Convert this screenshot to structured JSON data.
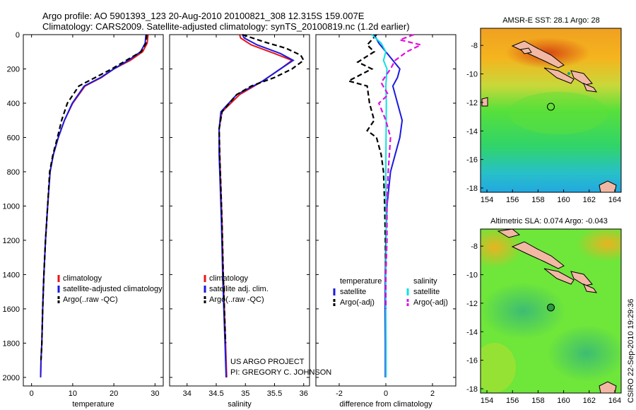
{
  "header": {
    "line1": "Argo profile: AO 5901393_123 20-Aug-2010 20100821_308 12.315S 159.007E",
    "line2": "Climatology: CARS2009. Satellite-adjusted climatology: synTS_20100819.nc (1.2d earlier)"
  },
  "credits": {
    "project": "US ARGO PROJECT",
    "pi": "PI: GREGORY C. JOHNSON",
    "stamp": "CSIRO 22-Sep-2010 19:29:36"
  },
  "colors": {
    "climatology": "#e8141b",
    "satellite": "#1a1ae0",
    "argo": "#000000",
    "salinity_satellite": "#10e0e0",
    "salinity_argo": "#e010e0"
  },
  "chart_data": [
    {
      "type": "line",
      "id": "temperature",
      "xlabel": "temperature",
      "ylabel": "",
      "xlim": [
        -2,
        32
      ],
      "ylim": [
        2050,
        0
      ],
      "xticks": [
        0,
        10,
        20,
        30
      ],
      "yticks": [
        0,
        200,
        400,
        600,
        800,
        1000,
        1200,
        1400,
        1600,
        1800,
        2000
      ],
      "legend": {
        "position": "bottom-right",
        "entries": [
          "climatology",
          "satellite-adjusted climatology",
          "Argo(..raw -QC)"
        ]
      },
      "series": [
        {
          "name": "climatology",
          "color": "#e8141b",
          "dash": "solid",
          "x": [
            28.3,
            28.1,
            27.0,
            24.0,
            20.0,
            17.0,
            13.0,
            10.0,
            8.0,
            6.5,
            5.3,
            4.5,
            3.9,
            3.4,
            3.0,
            2.7,
            2.5,
            2.3,
            2.2
          ],
          "y": [
            0,
            50,
            100,
            150,
            200,
            250,
            300,
            400,
            500,
            600,
            700,
            800,
            1000,
            1200,
            1400,
            1600,
            1800,
            1900,
            2000
          ]
        },
        {
          "name": "satellite-adjusted climatology",
          "color": "#1a1ae0",
          "dash": "solid",
          "x": [
            27.8,
            27.6,
            26.5,
            23.5,
            20.0,
            16.8,
            12.8,
            9.9,
            8.0,
            6.5,
            5.3,
            4.5,
            3.9,
            3.4,
            3.0,
            2.7,
            2.5,
            2.3,
            2.2
          ],
          "y": [
            0,
            50,
            100,
            150,
            200,
            250,
            300,
            400,
            500,
            600,
            700,
            800,
            1000,
            1200,
            1400,
            1600,
            1800,
            1900,
            2000
          ]
        },
        {
          "name": "Argo(..raw -QC)",
          "color": "#000000",
          "dash": "dashed",
          "x": [
            28.0,
            27.8,
            26.6,
            23.0,
            19.5,
            15.5,
            11.5,
            8.7,
            7.3,
            6.3,
            5.2,
            4.4,
            3.9,
            3.4,
            3.0,
            2.7,
            2.5,
            2.3
          ],
          "y": [
            0,
            50,
            100,
            150,
            200,
            250,
            300,
            400,
            500,
            600,
            700,
            800,
            1000,
            1200,
            1400,
            1600,
            1800,
            1900
          ]
        }
      ]
    },
    {
      "type": "line",
      "id": "salinity",
      "xlabel": "salinity",
      "xlim": [
        33.7,
        36.1
      ],
      "ylim": [
        2050,
        0
      ],
      "xticks": [
        34,
        34.5,
        35,
        35.5,
        36
      ],
      "yticks": [
        0,
        200,
        400,
        600,
        800,
        1000,
        1200,
        1400,
        1600,
        1800,
        2000
      ],
      "legend": {
        "position": "bottom-right",
        "entries": [
          "climatology",
          "satellite adj. clim.",
          "Argo(..raw -QC)"
        ]
      },
      "series": [
        {
          "name": "climatology",
          "color": "#e8141b",
          "dash": "solid",
          "x": [
            34.9,
            34.92,
            35.1,
            35.5,
            35.8,
            35.6,
            35.3,
            34.9,
            34.6,
            34.55,
            34.56,
            34.58,
            34.6,
            34.62,
            34.64,
            34.66,
            34.68
          ],
          "y": [
            0,
            20,
            60,
            110,
            150,
            200,
            270,
            350,
            450,
            550,
            700,
            900,
            1100,
            1400,
            1600,
            1800,
            2000
          ]
        },
        {
          "name": "satellite adj. clim.",
          "color": "#1a1ae0",
          "dash": "solid",
          "x": [
            34.95,
            34.98,
            35.2,
            35.6,
            35.82,
            35.6,
            35.3,
            34.85,
            34.58,
            34.55,
            34.55,
            34.57,
            34.59,
            34.61,
            34.63,
            34.65,
            34.67
          ],
          "y": [
            0,
            20,
            60,
            110,
            150,
            200,
            270,
            350,
            450,
            550,
            700,
            900,
            1100,
            1400,
            1600,
            1800,
            2000
          ]
        },
        {
          "name": "Argo(..raw -QC)",
          "color": "#000000",
          "dash": "dashed",
          "x": [
            34.95,
            35.3,
            35.7,
            35.95,
            36.0,
            35.8,
            35.5,
            35.1,
            34.85,
            34.6,
            34.55,
            34.56,
            34.58,
            34.6,
            34.62,
            34.64,
            34.66
          ],
          "y": [
            0,
            40,
            80,
            120,
            150,
            200,
            250,
            300,
            350,
            450,
            550,
            700,
            900,
            1100,
            1400,
            1600,
            1800
          ]
        }
      ]
    },
    {
      "type": "line",
      "id": "difference",
      "xlabel": "difference from climatology",
      "xlim": [
        -3,
        3
      ],
      "ylim": [
        2050,
        0
      ],
      "xticks": [
        -2,
        0,
        2
      ],
      "yticks": [
        0,
        200,
        400,
        600,
        800,
        1000,
        1200,
        1400,
        1600,
        1800,
        2000
      ],
      "legend": {
        "position": "bottom",
        "groups": [
          {
            "title": "temperature",
            "entries": [
              "satellite",
              "Argo(-adj)"
            ]
          },
          {
            "title": "salinity",
            "entries": [
              "satellite",
              "Argo(-adj)"
            ]
          }
        ]
      },
      "series": [
        {
          "name": "temperature satellite",
          "color": "#1a1ae0",
          "dash": "solid",
          "x": [
            -0.5,
            -0.3,
            0.0,
            0.3,
            0.6,
            0.5,
            0.3,
            0.5,
            0.7,
            0.6,
            0.4,
            0.2,
            0.05,
            0.0,
            -0.02,
            -0.03,
            -0.02,
            -0.02
          ],
          "y": [
            0,
            50,
            100,
            150,
            200,
            250,
            300,
            400,
            500,
            600,
            700,
            800,
            1000,
            1200,
            1400,
            1600,
            1800,
            2000
          ]
        },
        {
          "name": "temperature Argo(-adj)",
          "color": "#000000",
          "dash": "dashed",
          "x": [
            -0.4,
            -0.8,
            -0.5,
            -1.2,
            -0.6,
            -1.6,
            -0.8,
            -0.7,
            -0.5,
            -0.8,
            -0.4,
            -0.2,
            -0.1,
            -0.05,
            -0.02,
            -0.01,
            0.0
          ],
          "y": [
            0,
            60,
            100,
            160,
            200,
            270,
            300,
            400,
            500,
            560,
            600,
            700,
            800,
            1000,
            1200,
            1400,
            1600
          ]
        },
        {
          "name": "salinity satellite",
          "color": "#10e0e0",
          "dash": "solid",
          "x": [
            -0.6,
            -0.2,
            0.0,
            -0.1,
            0.05,
            0.0,
            0.02,
            0.01,
            0.0,
            0.01,
            0.02,
            0.0,
            0.0,
            0.01,
            0.01
          ],
          "y": [
            0,
            50,
            100,
            150,
            200,
            300,
            400,
            600,
            800,
            1000,
            1200,
            1400,
            1600,
            1800,
            2000
          ]
        },
        {
          "name": "salinity Argo(-adj)",
          "color": "#e010e0",
          "dash": "dashed",
          "x": [
            1.2,
            0.6,
            1.5,
            0.9,
            0.4,
            0.2,
            -0.2,
            0.1,
            -0.3,
            0.0,
            0.2,
            0.1,
            0.05,
            0.05,
            0.0,
            0.0
          ],
          "y": [
            0,
            30,
            60,
            100,
            150,
            200,
            280,
            350,
            400,
            500,
            600,
            800,
            1000,
            1200,
            1400,
            1600
          ]
        }
      ]
    },
    {
      "type": "heatmap",
      "id": "sst-map",
      "title": "AMSR-E SST: 28.1  Argo: 28",
      "xlim": [
        153.5,
        164.5
      ],
      "ylim": [
        -18.3,
        -6.8
      ],
      "xticks": [
        154,
        156,
        158,
        160,
        162,
        164
      ],
      "yticks": [
        -8,
        -10,
        -12,
        -14,
        -16,
        -18
      ],
      "float_marker": {
        "lon": 159.0,
        "lat": -12.3,
        "filled": false
      }
    },
    {
      "type": "heatmap",
      "id": "sla-map",
      "title": "Altimetric SLA: 0.074  Argo: -0.043",
      "xlim": [
        153.5,
        164.5
      ],
      "ylim": [
        -18.3,
        -6.8
      ],
      "xticks": [
        154,
        156,
        158,
        160,
        162,
        164
      ],
      "yticks": [
        -8,
        -10,
        -12,
        -14,
        -16,
        -18
      ],
      "float_marker": {
        "lon": 159.0,
        "lat": -12.3,
        "filled": true
      }
    }
  ]
}
